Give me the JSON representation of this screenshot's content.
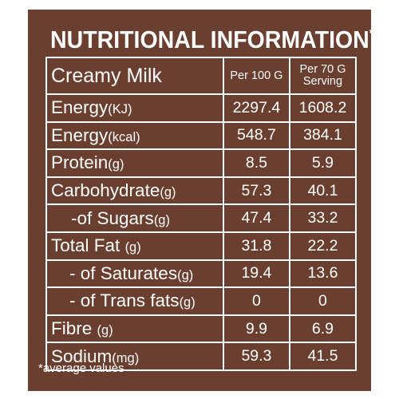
{
  "title": "NUTRITIONAL INFORMATION",
  "title_mark": "*",
  "header": {
    "product": "Creamy Milk",
    "col_per100": "Per 100 G",
    "col_per70_line1": "Per 70 G",
    "col_per70_line2": "Serving"
  },
  "rows": [
    {
      "name": "Energy",
      "unit": "(KJ)",
      "per100": "2297.4",
      "per70": "1608.2"
    },
    {
      "name": "Energy",
      "unit": "(kcal)",
      "per100": "548.7",
      "per70": "384.1"
    },
    {
      "name": "Protein",
      "unit": "(g)",
      "per100": "8.5",
      "per70": "5.9"
    },
    {
      "name": "Carbohydrate",
      "unit": "(g)",
      "per100": "57.3",
      "per70": "40.1"
    },
    {
      "name": "-of Sugars",
      "unit": "(g)",
      "per100": "47.4",
      "per70": "33.2"
    },
    {
      "name": "Total Fat",
      "unit": "(g)",
      "per100": "31.8",
      "per70": "22.2"
    },
    {
      "name": "- of Saturates",
      "unit": "(g)",
      "per100": "19.4",
      "per70": "13.6"
    },
    {
      "name": "- of Trans fats",
      "unit": "(g)",
      "per100": "0",
      "per70": "0"
    },
    {
      "name": "Fibre",
      "unit": "(g)",
      "per100": "9.9",
      "per70": "6.9"
    },
    {
      "name": "Sodium",
      "unit": "(mg)",
      "per100": "59.3",
      "per70": "41.5"
    }
  ],
  "footnote": "*average values",
  "colors": {
    "background": "#6b3f2f",
    "text": "#ffffff"
  }
}
